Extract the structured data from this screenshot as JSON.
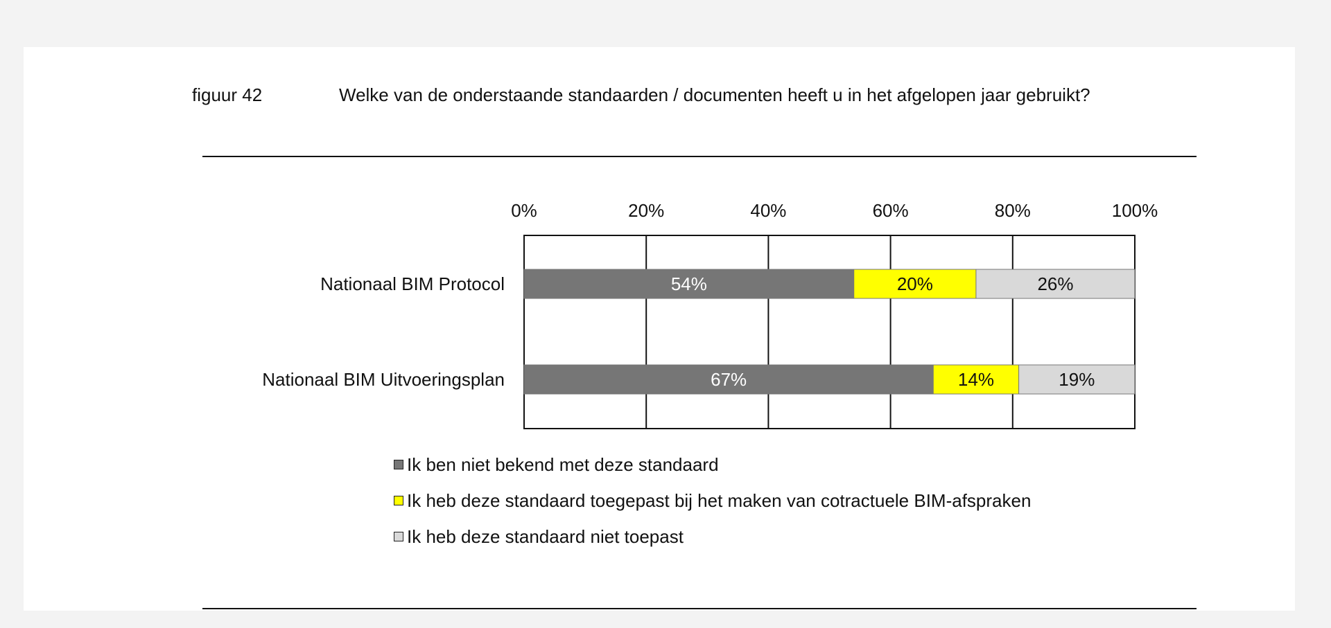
{
  "figure": {
    "number": "figuur 42",
    "question": "Welke van de onderstaande standaarden / documenten heeft u in het afgelopen jaar gebruikt?"
  },
  "chart_data": {
    "type": "bar",
    "orientation": "horizontal",
    "stacked": true,
    "categories": [
      "Nationaal BIM Protocol",
      "Nationaal BIM Uitvoeringsplan"
    ],
    "series": [
      {
        "name": "Ik ben niet bekend met deze standaard",
        "values": [
          54,
          67
        ],
        "color": "#767676",
        "label_color": "#ffffff"
      },
      {
        "name": "Ik heb deze standaard toegepast bij het maken van cotractuele BIM-afspraken",
        "values": [
          20,
          14
        ],
        "color": "#ffff00",
        "label_color": "#111111"
      },
      {
        "name": "Ik heb deze standaard niet toepast",
        "values": [
          26,
          19
        ],
        "color": "#d9d9d9",
        "label_color": "#111111"
      }
    ],
    "data_labels": [
      [
        "54%",
        "67%"
      ],
      [
        "20%",
        "14%"
      ],
      [
        "26%",
        "19%"
      ]
    ],
    "x_ticks": [
      "0%",
      "20%",
      "40%",
      "60%",
      "80%",
      "100%"
    ],
    "xlim": [
      0,
      100
    ],
    "axis_position": "top",
    "grid": true,
    "legend_position": "bottom"
  }
}
